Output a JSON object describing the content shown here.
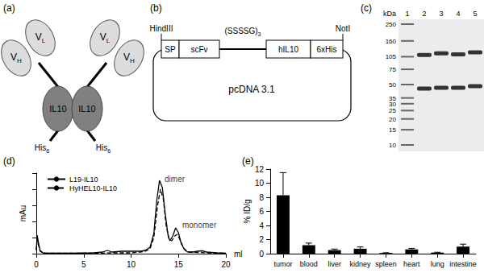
{
  "panel_a": {
    "title": "(a)",
    "light_domains": [
      {
        "base": "V",
        "sub": "L"
      },
      {
        "base": "V",
        "sub": "H"
      }
    ],
    "dark_domain": "IL10",
    "tag": {
      "base": "His",
      "sub": "6"
    }
  },
  "panel_b": {
    "title": "(b)",
    "sites": [
      "HindIII",
      "NotI"
    ],
    "linker": {
      "base": "(SSSSG)",
      "sub": "3"
    },
    "segments": [
      "SP",
      "scFv",
      "hIL10",
      "6xHis"
    ],
    "vector": "pcDNA 3.1"
  },
  "panel_c": {
    "title": "(c)",
    "unit": "kDa",
    "ladder": [
      250,
      160,
      105,
      75,
      50,
      35,
      30,
      25,
      20,
      15,
      10
    ],
    "lanes": [
      1,
      2,
      3,
      4,
      5
    ],
    "bands": [
      {
        "lane": 2,
        "kda": [
          110,
          45
        ]
      },
      {
        "lane": 3,
        "kda": [
          115,
          46
        ]
      },
      {
        "lane": 4,
        "kda": [
          112,
          46
        ]
      },
      {
        "lane": 5,
        "kda": [
          118,
          48
        ]
      }
    ]
  },
  "chart_data": [
    {
      "type": "line",
      "title": "(d)",
      "xlabel": "ml",
      "ylabel": "mAu",
      "xlim": [
        0,
        20
      ],
      "xticks": [
        0,
        5,
        10,
        15,
        20
      ],
      "ylim": [
        0,
        10
      ],
      "yticks": [
        0,
        2,
        4,
        6,
        8,
        10
      ],
      "tick_labels": "x",
      "grid": false,
      "legend": "top-left",
      "series": [
        {
          "name": "L19-IL10",
          "color": "#000000",
          "line_style": "solid",
          "x": [
            0,
            0.1,
            0.2,
            0.4,
            0.7,
            1,
            2,
            4,
            6,
            7,
            7.5,
            8,
            9,
            10,
            11,
            11.5,
            12,
            12.4,
            12.7,
            13,
            13.3,
            13.6,
            13.9,
            14.1,
            14.4,
            14.7,
            15,
            15.3,
            15.7,
            16,
            16.5,
            17,
            17.5,
            18,
            19,
            20
          ],
          "values": [
            0.5,
            2.3,
            1.5,
            0.4,
            0.1,
            0.05,
            0.05,
            0.05,
            0.1,
            0.2,
            0.4,
            0.2,
            0.3,
            0.3,
            0.3,
            0.4,
            0.8,
            2.5,
            6.5,
            9.1,
            8.2,
            5.0,
            2.3,
            1.6,
            2.2,
            3.2,
            2.6,
            1.2,
            0.4,
            0.2,
            0.2,
            0.3,
            0.35,
            0.2,
            0.1,
            0.05
          ]
        },
        {
          "name": "HyHEL10-IL10",
          "color": "#000000",
          "line_style": "dashed",
          "x": [
            0,
            0.1,
            0.2,
            0.4,
            0.7,
            1,
            3,
            6,
            8,
            10,
            11,
            11.5,
            12,
            12.4,
            12.8,
            13.1,
            13.4,
            13.7,
            14,
            14.3,
            14.6,
            14.9,
            15.2,
            15.6,
            16,
            17,
            18,
            20
          ],
          "values": [
            0.4,
            2.0,
            1.2,
            0.3,
            0.1,
            0.05,
            0.05,
            0.05,
            0.1,
            0.1,
            0.2,
            0.3,
            0.6,
            2.0,
            6.0,
            8.0,
            6.8,
            3.5,
            1.8,
            1.6,
            2.2,
            2.4,
            1.6,
            0.6,
            0.2,
            0.15,
            0.1,
            0.05
          ]
        }
      ],
      "annotations": [
        {
          "text": "dimer",
          "x": 14.6,
          "y": 9.3
        },
        {
          "text": "monomer",
          "x": 17.2,
          "y": 3.6
        }
      ]
    },
    {
      "type": "bar",
      "title": "(e)",
      "ylabel": "% ID/g",
      "categories": [
        "tumor",
        "blood",
        "liver",
        "kidney",
        "spleen",
        "heart",
        "lung",
        "intestine"
      ],
      "values": [
        8.3,
        1.2,
        0.5,
        0.7,
        0.1,
        0.6,
        0.15,
        1.0
      ],
      "errors": [
        3.2,
        0.3,
        0.15,
        0.25,
        0.03,
        0.15,
        0.05,
        0.35
      ],
      "color": "#000000",
      "ylim": [
        0,
        12
      ],
      "yticks": [
        0,
        2,
        4,
        6,
        8,
        10,
        12
      ],
      "grid": false
    }
  ]
}
